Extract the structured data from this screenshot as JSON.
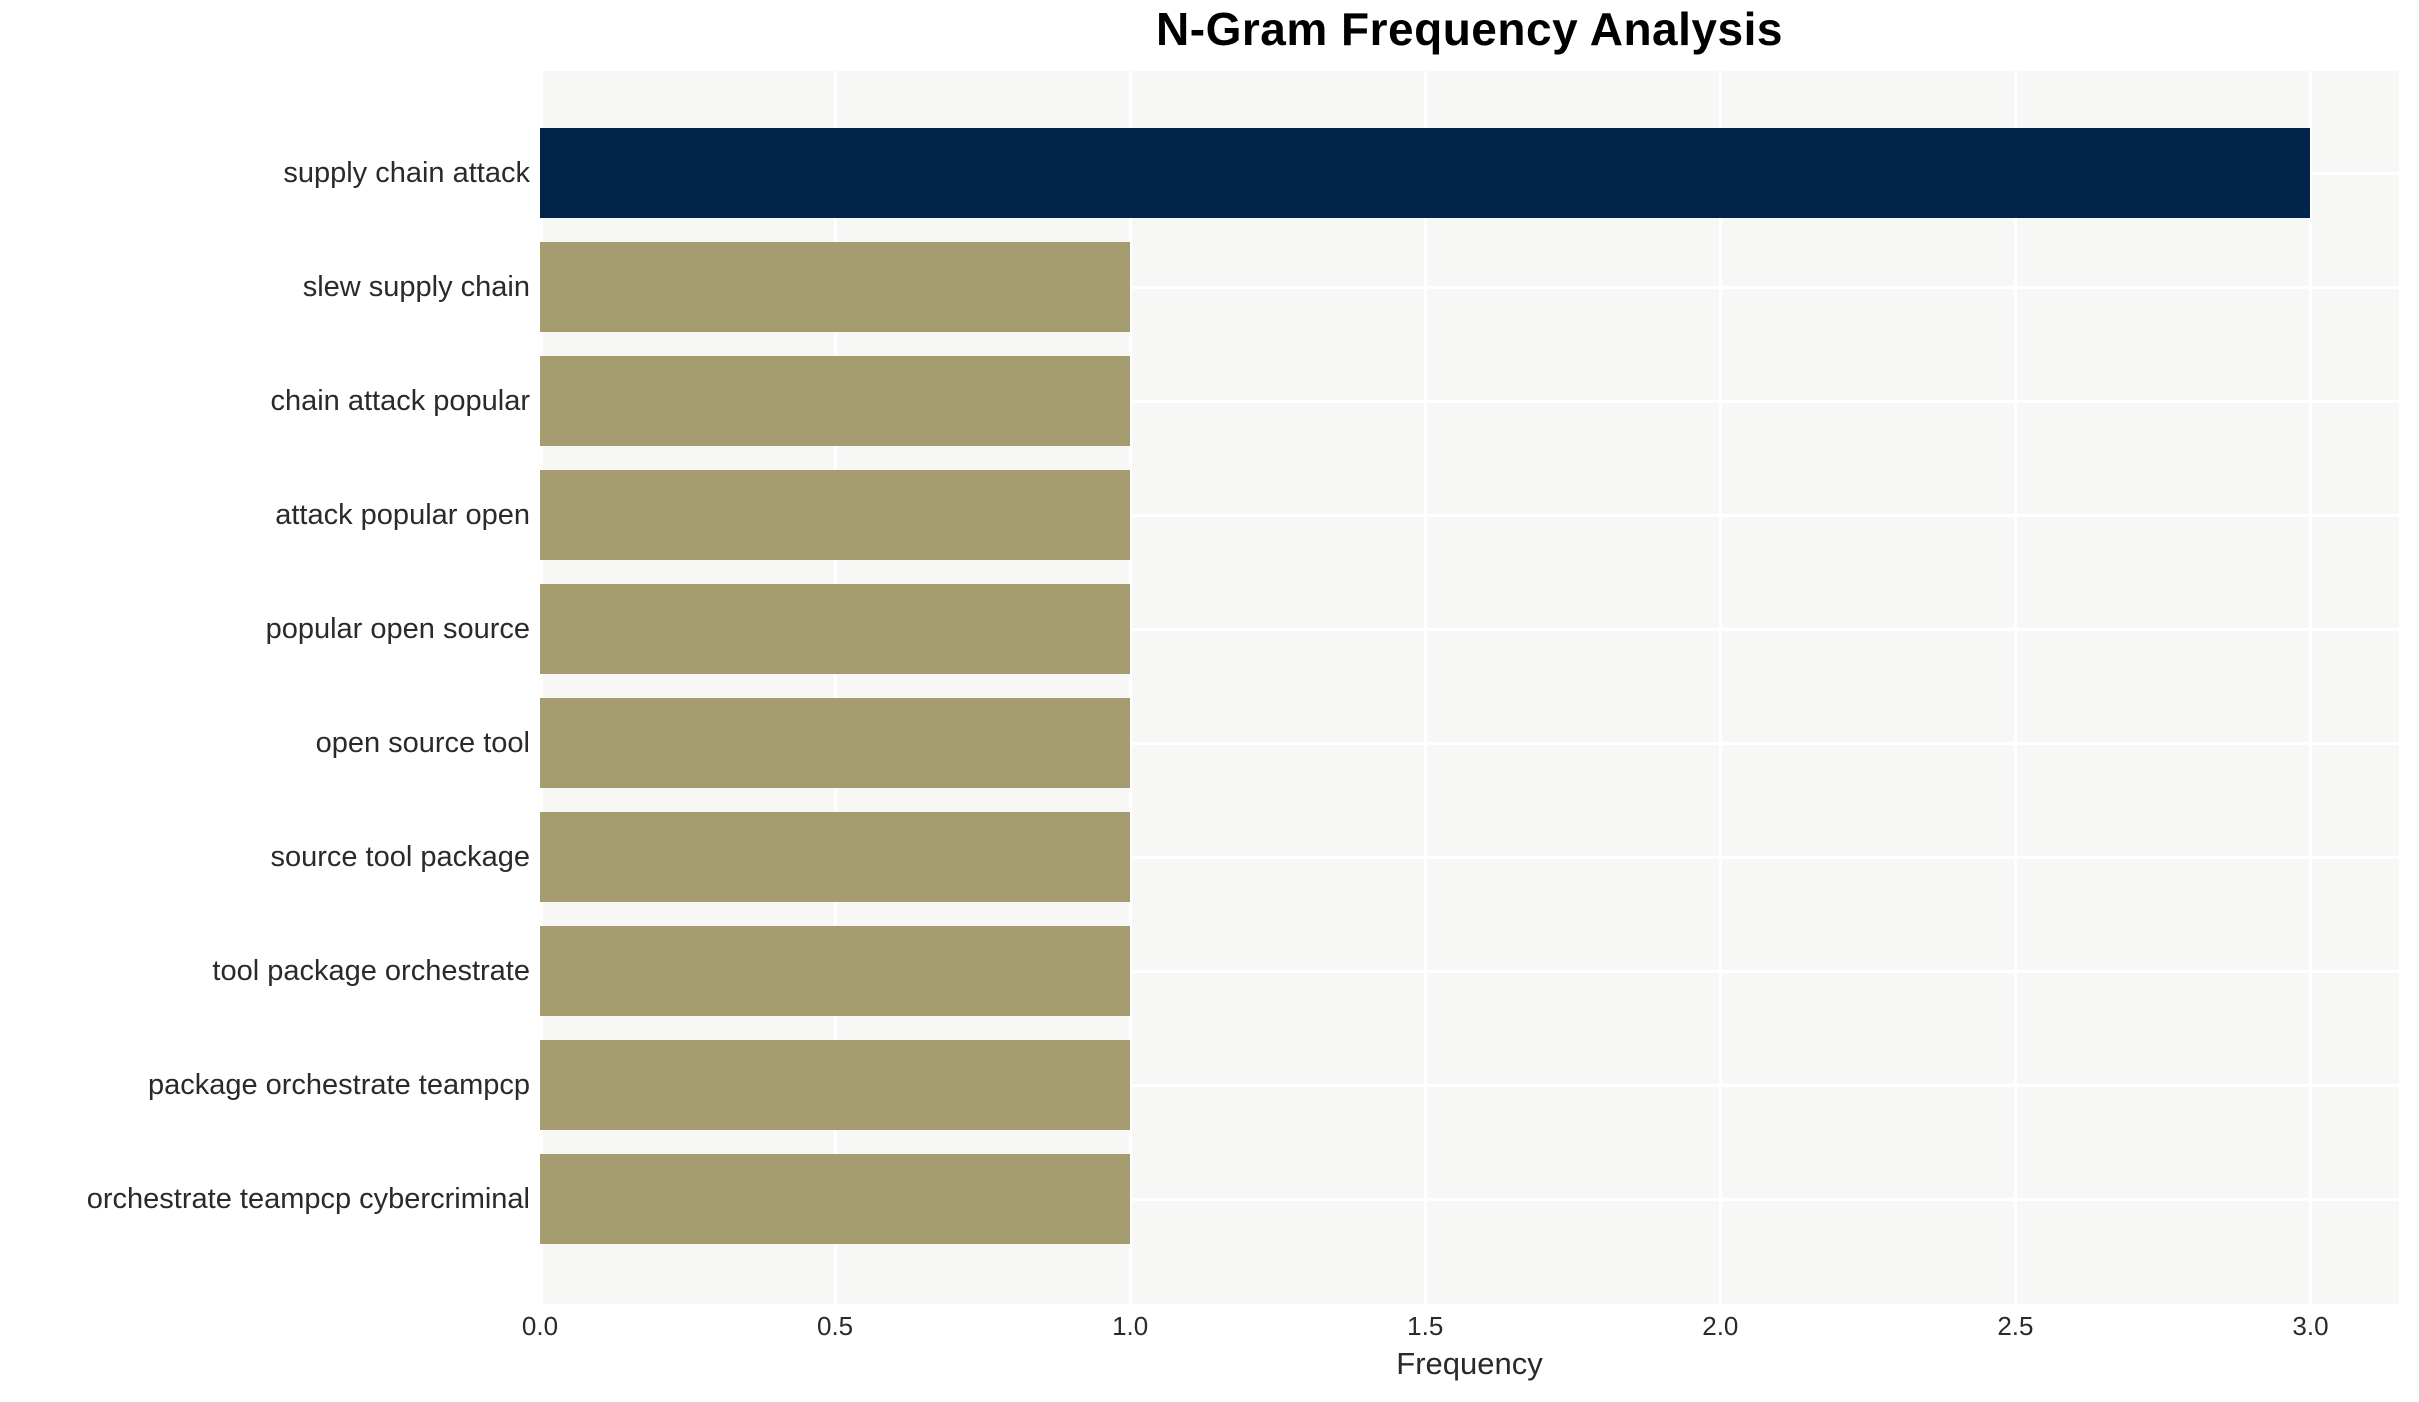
{
  "chart_data": {
    "type": "bar",
    "orientation": "horizontal",
    "title": "N-Gram Frequency Analysis",
    "xlabel": "Frequency",
    "ylabel": "",
    "categories": [
      "supply chain attack",
      "slew supply chain",
      "chain attack popular",
      "attack popular open",
      "popular open source",
      "open source tool",
      "source tool package",
      "tool package orchestrate",
      "package orchestrate teampcp",
      "orchestrate teampcp cybercriminal"
    ],
    "values": [
      3,
      1,
      1,
      1,
      1,
      1,
      1,
      1,
      1,
      1
    ],
    "xlim": [
      0,
      3.15
    ],
    "xticks": [
      0.0,
      0.5,
      1.0,
      1.5,
      2.0,
      2.5,
      3.0
    ],
    "xtick_labels": [
      "0.0",
      "0.5",
      "1.0",
      "1.5",
      "2.0",
      "2.5",
      "3.0"
    ],
    "grid": true,
    "legend": false,
    "colors": {
      "bar_highlight": "#02234A",
      "bar_default": "#A59C70",
      "plot_background": "#F7F7F5",
      "gridline": "#FFFFFF",
      "text": "#2A2A2A",
      "title": "#000000"
    }
  }
}
